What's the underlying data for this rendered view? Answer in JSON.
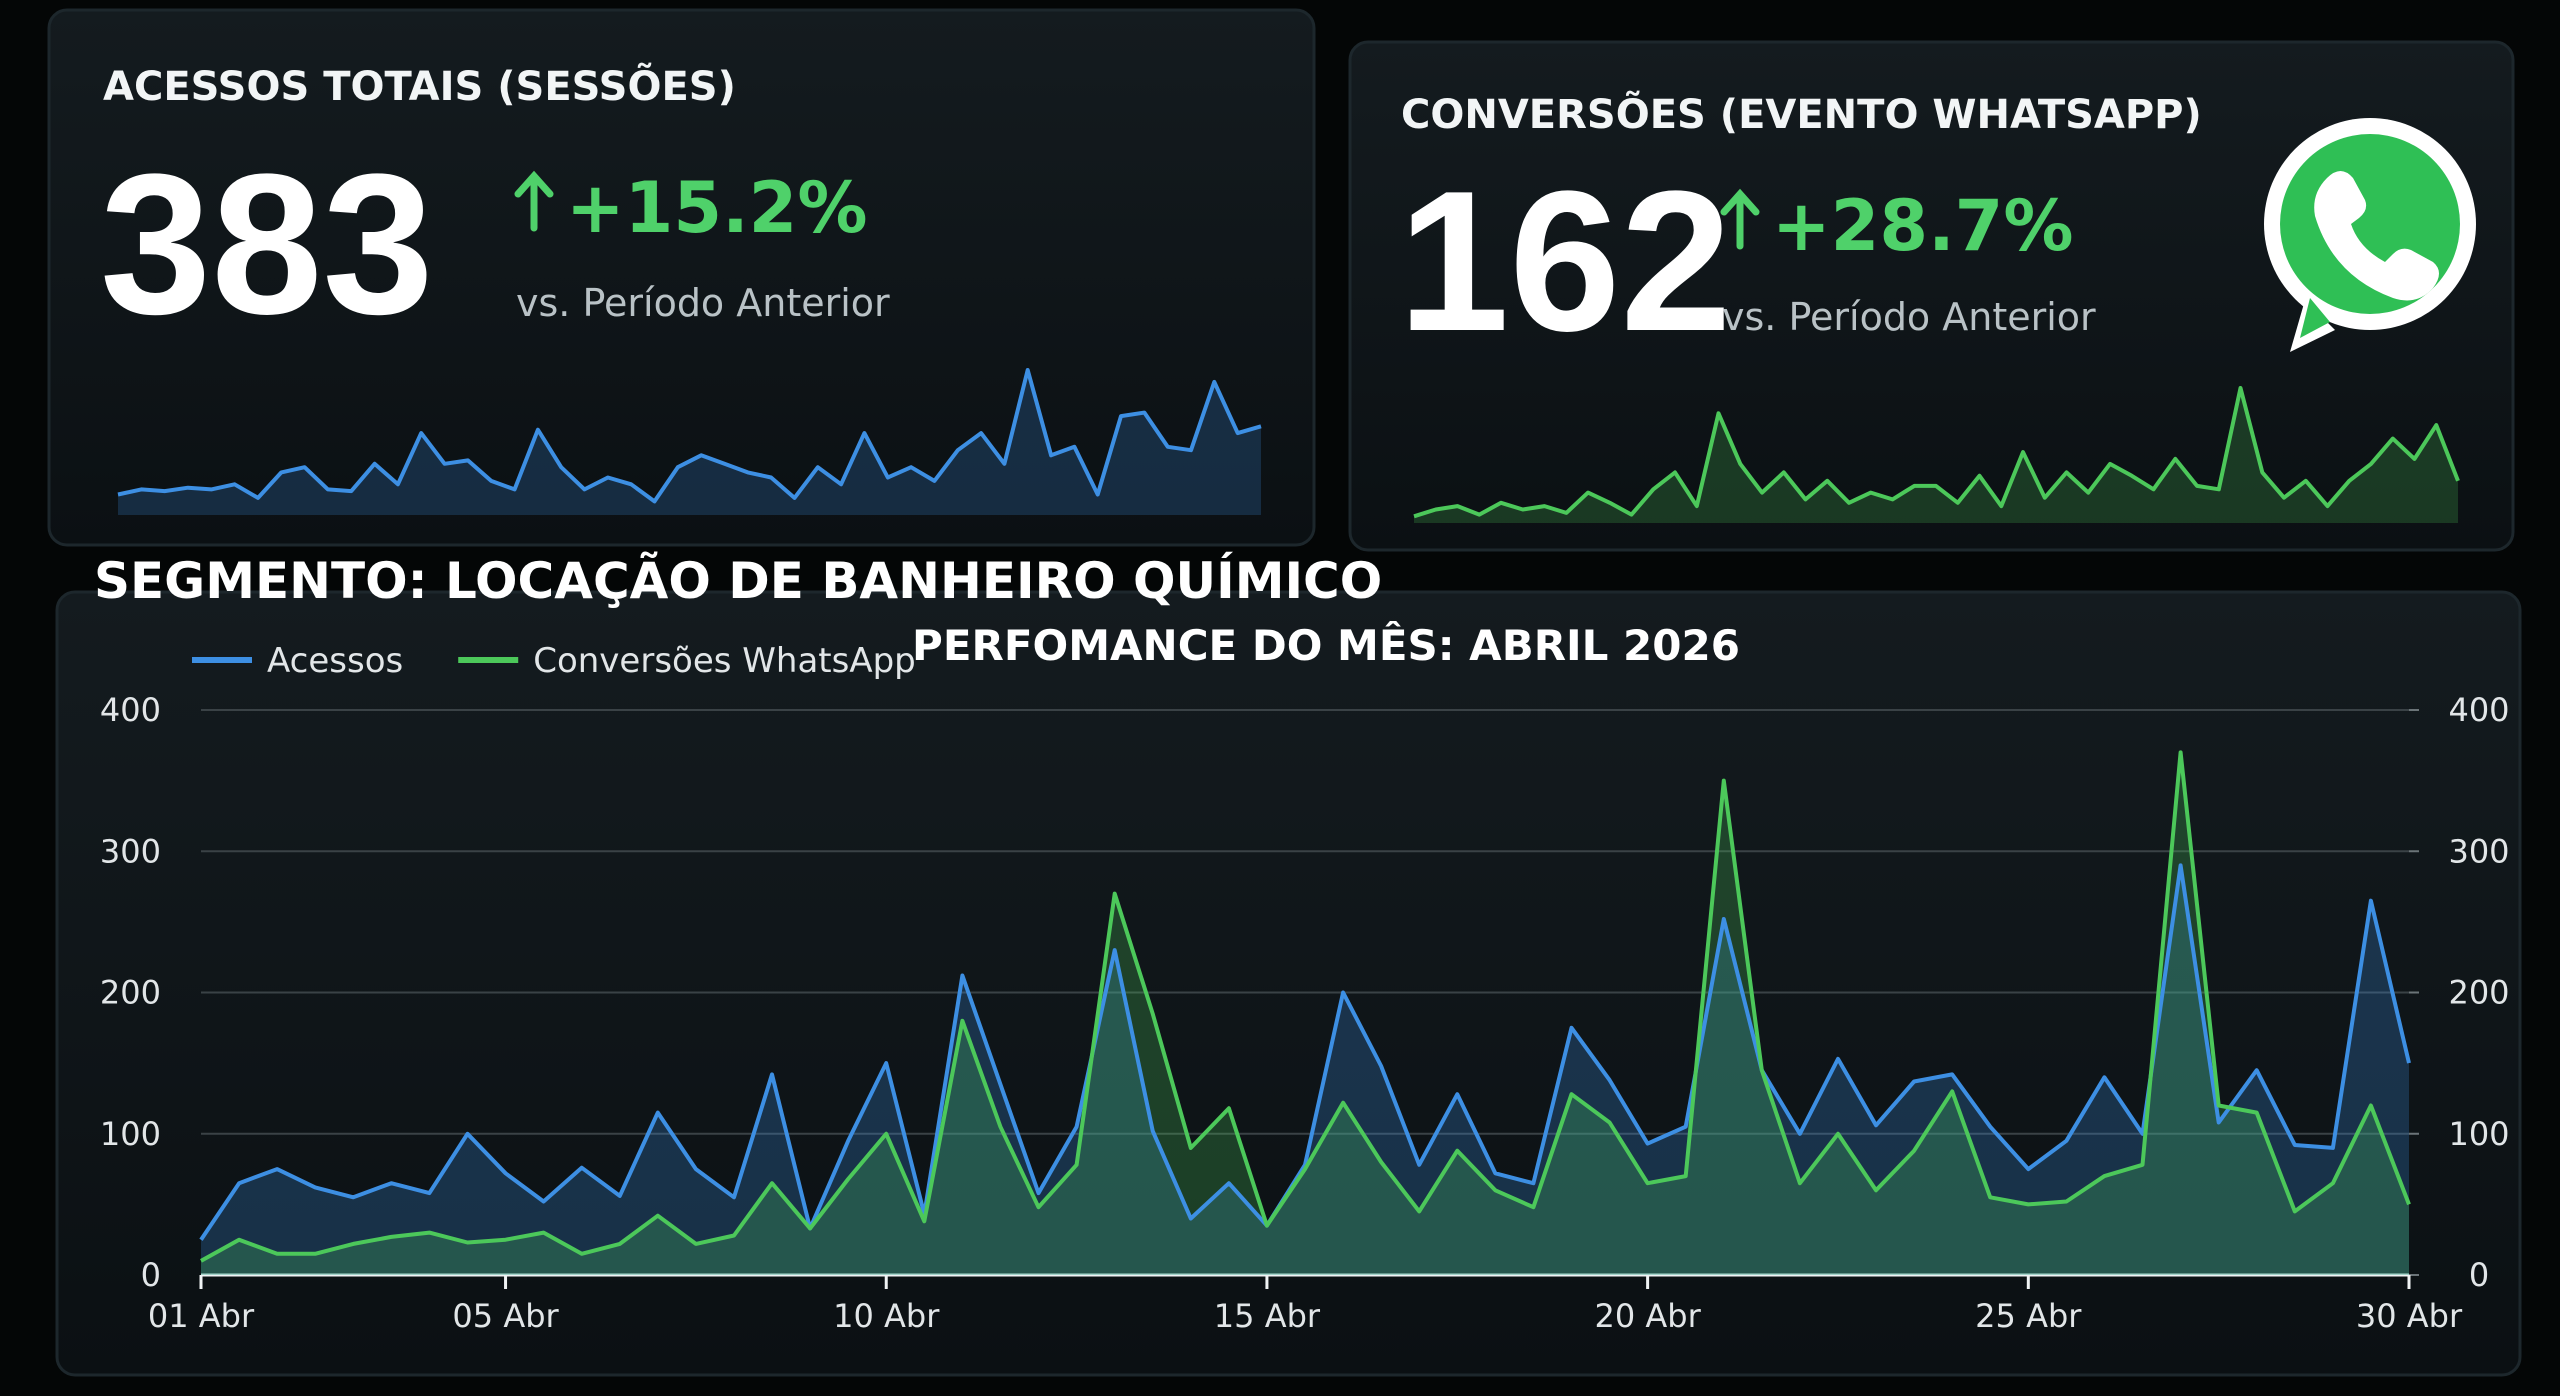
{
  "segment_title": "SEGMENTO: LOCAÇÃO DE BANHEIRO QUÍMICO",
  "chart_data": [
    {
      "type": "area",
      "title": "ACESSOS TOTAIS (SESSÕES)",
      "value": 383,
      "change": "+15.2%",
      "change_note": "vs. Período Anterior",
      "color": "#3d8fe3",
      "values": [
        12,
        15,
        14,
        16,
        15,
        18,
        10,
        25,
        28,
        15,
        14,
        30,
        18,
        48,
        30,
        32,
        20,
        15,
        50,
        28,
        15,
        22,
        18,
        8,
        28,
        35,
        30,
        25,
        22,
        10,
        28,
        18,
        48,
        22,
        28,
        20,
        38,
        48,
        30,
        85,
        35,
        40,
        12,
        58,
        60,
        40,
        38,
        78,
        48,
        52
      ]
    },
    {
      "type": "area",
      "title": "CONVERSÕES (EVENTO WHATSAPP)",
      "value": 162,
      "change": "+28.7%",
      "change_note": "vs. Período Anterior",
      "color": "#4cc85a",
      "values": [
        4,
        8,
        10,
        5,
        12,
        8,
        10,
        6,
        18,
        12,
        5,
        20,
        30,
        10,
        65,
        35,
        18,
        30,
        14,
        25,
        12,
        18,
        14,
        22,
        22,
        12,
        28,
        10,
        42,
        15,
        30,
        18,
        35,
        28,
        20,
        38,
        22,
        20,
        80,
        30,
        15,
        25,
        10,
        25,
        35,
        50,
        38,
        58,
        25
      ]
    },
    {
      "type": "line",
      "title": "PERFOMANCE DO MÊS: ABRIL 2026",
      "legend": "top-left",
      "grid": true,
      "x": [
        1,
        1.5,
        2,
        2.5,
        3,
        3.5,
        4,
        4.5,
        5,
        5.5,
        6,
        6.5,
        7,
        7.5,
        8,
        8.5,
        9,
        9.5,
        10,
        10.5,
        11,
        11.5,
        12,
        12.5,
        13,
        13.5,
        14,
        14.5,
        15,
        15.5,
        16,
        16.5,
        17,
        17.5,
        18,
        18.5,
        19,
        19.5,
        20,
        20.5,
        21,
        21.5,
        22,
        22.5,
        23,
        23.5,
        24,
        24.5,
        25,
        25.5,
        26,
        26.5,
        27,
        27.5,
        28,
        28.5,
        29,
        29.5,
        30
      ],
      "xlim": [
        1,
        30
      ],
      "xticks": [
        {
          "value": 1,
          "label": "01 Abr"
        },
        {
          "value": 5,
          "label": "05 Abr"
        },
        {
          "value": 10,
          "label": "10 Abr"
        },
        {
          "value": 15,
          "label": "15 Abr"
        },
        {
          "value": 20,
          "label": "20 Abr"
        },
        {
          "value": 25,
          "label": "25 Abr"
        },
        {
          "value": 30,
          "label": "30 Abr"
        }
      ],
      "ylim": [
        0,
        400
      ],
      "yticks": [
        0,
        100,
        200,
        300,
        400
      ],
      "y2lim": [
        0,
        400
      ],
      "y2ticks": [
        0,
        100,
        200,
        300,
        400
      ],
      "series": [
        {
          "name": "Acessos",
          "color": "#3d8fe3",
          "values": [
            25,
            65,
            75,
            62,
            55,
            65,
            58,
            100,
            72,
            52,
            76,
            56,
            115,
            75,
            55,
            142,
            33,
            95,
            150,
            43,
            212,
            135,
            58,
            105,
            230,
            102,
            40,
            65,
            35,
            78,
            200,
            148,
            78,
            128,
            72,
            65,
            175,
            138,
            93,
            105,
            252,
            145,
            100,
            153,
            106,
            137,
            142,
            105,
            75,
            95,
            140,
            100,
            290,
            108,
            145,
            92,
            90,
            265,
            150
          ]
        },
        {
          "name": "Conversões WhatsApp",
          "color": "#4cc85a",
          "axis": "y2",
          "values": [
            10,
            25,
            15,
            15,
            22,
            27,
            30,
            23,
            25,
            30,
            15,
            22,
            42,
            22,
            28,
            65,
            33,
            68,
            100,
            38,
            180,
            105,
            48,
            78,
            270,
            185,
            90,
            118,
            35,
            75,
            122,
            80,
            45,
            88,
            60,
            48,
            128,
            108,
            65,
            70,
            350,
            145,
            65,
            100,
            60,
            88,
            130,
            55,
            50,
            52,
            70,
            78,
            370,
            120,
            115,
            45,
            65,
            120,
            50
          ]
        }
      ]
    }
  ]
}
